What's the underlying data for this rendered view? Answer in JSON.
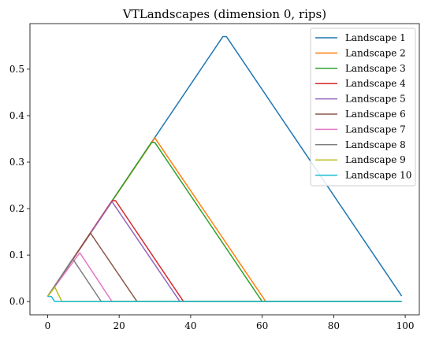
{
  "chart_data": {
    "type": "line",
    "title": "VTLandscapes (dimension 0, rips)",
    "xlabel": "",
    "ylabel": "",
    "xlim": [
      -4.95,
      103.95
    ],
    "ylim": [
      -0.0285,
      0.598
    ],
    "xticks": [
      0,
      20,
      40,
      60,
      80,
      100
    ],
    "yticks": [
      0.0,
      0.1,
      0.2,
      0.3,
      0.4,
      0.5
    ],
    "xtick_labels": [
      "0",
      "20",
      "40",
      "60",
      "80",
      "100"
    ],
    "ytick_labels": [
      "0.0",
      "0.1",
      "0.2",
      "0.3",
      "0.4",
      "0.5"
    ],
    "grid": false,
    "legend_position": "top-right",
    "series": [
      {
        "name": "Landscape 1",
        "color": "#1f77b4",
        "x": [
          0,
          49,
          50,
          99
        ],
        "y": [
          0.011,
          0.57,
          0.57,
          0.012
        ]
      },
      {
        "name": "Landscape 2",
        "color": "#ff7f0e",
        "x": [
          0,
          30,
          61,
          99
        ],
        "y": [
          0.011,
          0.352,
          0.0,
          0.0
        ]
      },
      {
        "name": "Landscape 3",
        "color": "#2ca02c",
        "x": [
          0,
          29,
          30,
          60,
          99
        ],
        "y": [
          0.011,
          0.342,
          0.342,
          0.0,
          0.0
        ]
      },
      {
        "name": "Landscape 4",
        "color": "#d62728",
        "x": [
          0,
          18,
          19,
          38,
          99
        ],
        "y": [
          0.011,
          0.217,
          0.217,
          0.0,
          0.0
        ]
      },
      {
        "name": "Landscape 5",
        "color": "#9467bd",
        "x": [
          0,
          18,
          37,
          99
        ],
        "y": [
          0.011,
          0.215,
          0.0,
          0.0
        ]
      },
      {
        "name": "Landscape 6",
        "color": "#8c564b",
        "x": [
          0,
          12,
          25,
          99
        ],
        "y": [
          0.011,
          0.147,
          0.0,
          0.0
        ]
      },
      {
        "name": "Landscape 7",
        "color": "#e377c2",
        "x": [
          0,
          9,
          18,
          99
        ],
        "y": [
          0.011,
          0.105,
          0.0,
          0.0
        ]
      },
      {
        "name": "Landscape 8",
        "color": "#7f7f7f",
        "x": [
          0,
          7,
          15,
          99
        ],
        "y": [
          0.011,
          0.092,
          0.0,
          0.0
        ]
      },
      {
        "name": "Landscape 9",
        "color": "#bcbd22",
        "x": [
          0,
          2,
          4,
          99
        ],
        "y": [
          0.011,
          0.031,
          0.0,
          0.0
        ]
      },
      {
        "name": "Landscape 10",
        "color": "#17becf",
        "x": [
          0,
          1,
          2,
          99
        ],
        "y": [
          0.011,
          0.011,
          0.0,
          0.0
        ]
      }
    ]
  }
}
